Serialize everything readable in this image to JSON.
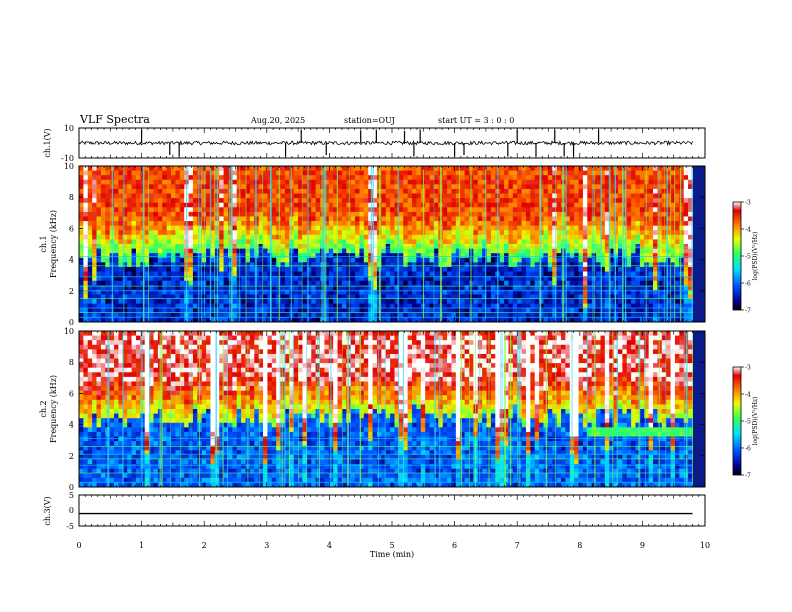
{
  "header": {
    "title": "VLF Spectra",
    "date": "Aug.20, 2025",
    "station": "station=OUJ",
    "start": "start UT = 3 : 0 : 0"
  },
  "chart_data": [
    {
      "type": "line",
      "name": "ch1-waveform",
      "ylabel": "ch.1(V)",
      "ylim": [
        -10,
        10
      ],
      "ytick_labels": [
        "10",
        "-10"
      ],
      "baseline": 0,
      "noise_amplitude": 1.2,
      "spikes": [
        {
          "t": 1.0,
          "v": 9
        },
        {
          "t": 1.45,
          "v": -8
        },
        {
          "t": 1.6,
          "v": -9
        },
        {
          "t": 3.3,
          "v": -9
        },
        {
          "t": 3.55,
          "v": 9
        },
        {
          "t": 3.95,
          "v": -8
        },
        {
          "t": 4.5,
          "v": 8
        },
        {
          "t": 4.75,
          "v": 9
        },
        {
          "t": 5.2,
          "v": 8
        },
        {
          "t": 5.35,
          "v": -9
        },
        {
          "t": 5.45,
          "v": 9
        },
        {
          "t": 6.0,
          "v": -9
        },
        {
          "t": 6.15,
          "v": -8
        },
        {
          "t": 6.85,
          "v": -9
        },
        {
          "t": 7.0,
          "v": 9
        },
        {
          "t": 7.3,
          "v": -9
        },
        {
          "t": 7.6,
          "v": 9
        },
        {
          "t": 7.75,
          "v": -9
        },
        {
          "t": 7.9,
          "v": -9
        },
        {
          "t": 8.3,
          "v": 9
        }
      ],
      "t_range": [
        0,
        9.8
      ]
    },
    {
      "type": "heatmap",
      "name": "ch1-spectrogram",
      "ylabel": "ch.1\nFrequency (kHz)",
      "ylim": [
        0,
        10
      ],
      "ytick_labels": [
        "0",
        "2",
        "4",
        "6",
        "8",
        "10"
      ],
      "colorbar": {
        "label": "log(PSD)(V²/Hz)",
        "range": [
          -7,
          -3
        ],
        "ticks": [
          "-3",
          "-4",
          "-5",
          "-6",
          "-7"
        ]
      },
      "t_range": [
        0,
        9.8
      ],
      "level_top": -3.6,
      "level_bottom": -6.6,
      "cutoff_khz": 4.2,
      "bands_khz": [
        0.3,
        0.6,
        0.9,
        1.5,
        2.0,
        2.3,
        2.9,
        3.6,
        4.2,
        4.8
      ],
      "late_band": null
    },
    {
      "type": "heatmap",
      "name": "ch2-spectrogram",
      "ylabel": "ch.2\nFrequency (kHz)",
      "ylim": [
        0,
        10
      ],
      "ytick_labels": [
        "0",
        "2",
        "4",
        "6",
        "8",
        "10"
      ],
      "colorbar": {
        "label": "log(PSD)(V²/Hz)",
        "range": [
          -7,
          -3
        ],
        "ticks": [
          "-3",
          "-4",
          "-5",
          "-6",
          "-7"
        ]
      },
      "t_range": [
        0,
        9.8
      ],
      "level_top": -3.2,
      "level_bottom": -6.3,
      "cutoff_khz": 4.5,
      "bands_khz": [
        0.3,
        0.9,
        1.4,
        1.8,
        2.1,
        2.6,
        3.1
      ],
      "late_band": {
        "t_start": 8.1,
        "f_low_khz": 3.2,
        "f_high_khz": 3.8,
        "level": -4.9
      }
    },
    {
      "type": "line",
      "name": "ch3-waveform",
      "ylabel": "ch.3(V)",
      "ylim": [
        -5,
        5
      ],
      "ytick_labels": [
        "5",
        "0",
        "-5"
      ],
      "x": [
        0,
        9.8
      ],
      "y": [
        -1.0,
        -1.0
      ]
    }
  ],
  "x_axis": {
    "label": "Time (min)",
    "xlim": [
      0,
      10
    ],
    "tick_labels": [
      "0",
      "1",
      "2",
      "3",
      "4",
      "5",
      "6",
      "7",
      "8",
      "9",
      "10"
    ]
  }
}
